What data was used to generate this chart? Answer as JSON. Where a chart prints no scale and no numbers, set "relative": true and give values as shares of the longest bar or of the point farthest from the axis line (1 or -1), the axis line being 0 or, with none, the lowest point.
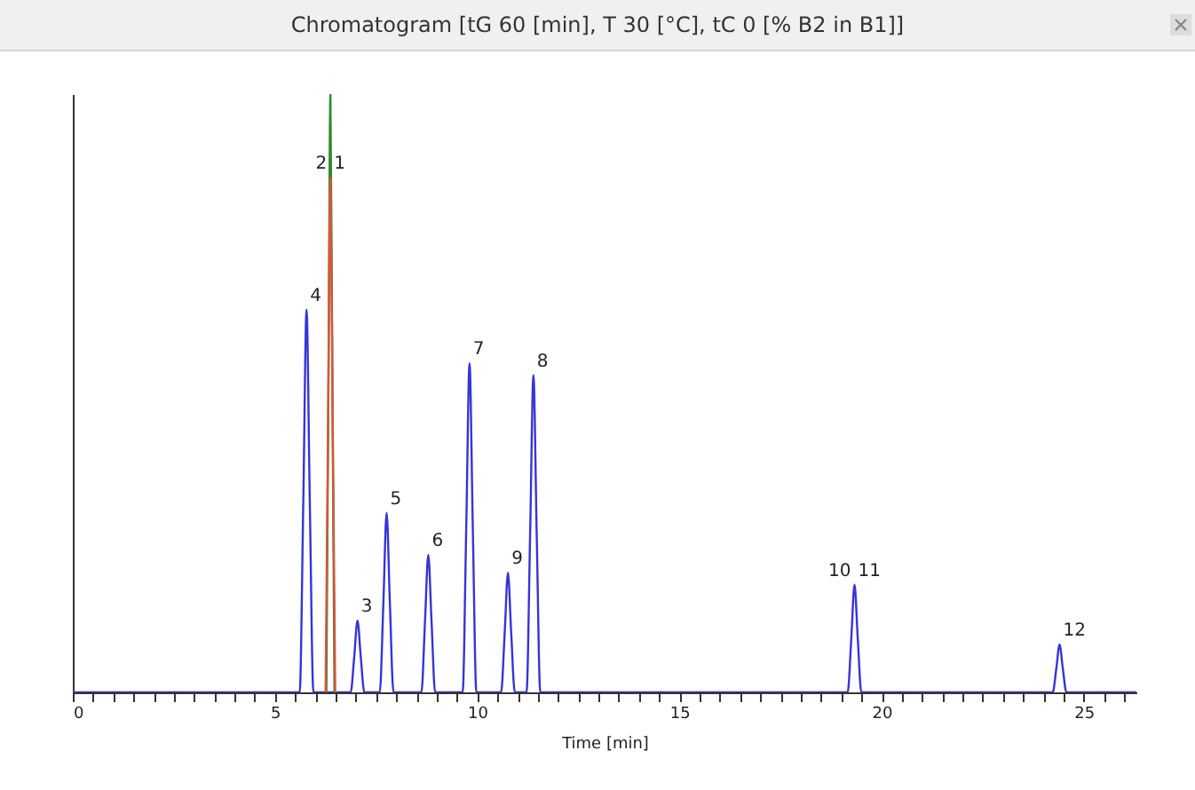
{
  "chart_data": {
    "type": "line",
    "title": "Chromatogram [tG 60 [min], T 30 [°C], tC 0 [% B2 in B1]]",
    "xlabel": "Time [min]",
    "relative": true,
    "grid": false,
    "legend": false,
    "marker": "none",
    "line_style": "solid",
    "xlim": [
      0,
      26.3
    ],
    "xticks": [
      0,
      {
        "value": 0.5,
        "label": null
      },
      {
        "value": 1,
        "label": null
      },
      {
        "value": 1.5,
        "label": null
      },
      {
        "value": 2,
        "label": null
      },
      {
        "value": 2.5,
        "label": null
      },
      {
        "value": 3,
        "label": null
      },
      {
        "value": 3.5,
        "label": null
      },
      {
        "value": 4,
        "label": null
      },
      {
        "value": 4.5,
        "label": null
      },
      5,
      {
        "value": 5.5,
        "label": null
      },
      {
        "value": 6,
        "label": null
      },
      {
        "value": 6.5,
        "label": null
      },
      {
        "value": 7,
        "label": null
      },
      {
        "value": 7.5,
        "label": null
      },
      {
        "value": 8,
        "label": null
      },
      {
        "value": 8.5,
        "label": null
      },
      {
        "value": 9,
        "label": null
      },
      {
        "value": 9.5,
        "label": null
      },
      10,
      {
        "value": 10.5,
        "label": null
      },
      {
        "value": 11,
        "label": null
      },
      {
        "value": 11.5,
        "label": null
      },
      {
        "value": 12,
        "label": null
      },
      {
        "value": 12.5,
        "label": null
      },
      {
        "value": 13,
        "label": null
      },
      {
        "value": 13.5,
        "label": null
      },
      {
        "value": 14,
        "label": null
      },
      {
        "value": 14.5,
        "label": null
      },
      15,
      {
        "value": 15.5,
        "label": null
      },
      {
        "value": 16,
        "label": null
      },
      {
        "value": 16.5,
        "label": null
      },
      {
        "value": 17,
        "label": null
      },
      {
        "value": 17.5,
        "label": null
      },
      {
        "value": 18,
        "label": null
      },
      {
        "value": 18.5,
        "label": null
      },
      {
        "value": 19,
        "label": null
      },
      {
        "value": 19.5,
        "label": null
      },
      20,
      {
        "value": 20.5,
        "label": null
      },
      {
        "value": 21,
        "label": null
      },
      {
        "value": 21.5,
        "label": null
      },
      {
        "value": 22,
        "label": null
      },
      {
        "value": 22.5,
        "label": null
      },
      {
        "value": 23,
        "label": null
      },
      {
        "value": 23.5,
        "label": null
      },
      {
        "value": 24,
        "label": null
      },
      {
        "value": 24.5,
        "label": null
      },
      25,
      {
        "value": 25.5,
        "label": null
      },
      {
        "value": 26,
        "label": null
      }
    ],
    "series": [
      {
        "color": "#3535d8",
        "x": [
          0,
          5.61,
          5.7,
          5.78,
          5.86,
          5.95,
          6.87,
          6.96,
          7.04,
          7.12,
          7.21,
          7.59,
          7.68,
          7.76,
          7.84,
          7.93,
          8.62,
          8.71,
          8.79,
          8.87,
          8.96,
          9.64,
          9.73,
          9.81,
          9.89,
          9.98,
          10.59,
          10.68,
          10.76,
          10.84,
          10.93,
          11.22,
          11.31,
          11.39,
          11.47,
          11.56,
          19.16,
          19.25,
          19.33,
          19.41,
          19.5,
          24.23,
          24.32,
          24.4,
          24.48,
          24.57,
          26.3
        ],
        "values": [
          0,
          0,
          0.32,
          0.64,
          0.32,
          0,
          0,
          0.06,
          0.12,
          0.06,
          0,
          0,
          0.15,
          0.3,
          0.15,
          0,
          0,
          0.12,
          0.23,
          0.12,
          0,
          0,
          0.28,
          0.55,
          0.28,
          0,
          0,
          0.1,
          0.2,
          0.1,
          0,
          0,
          0.27,
          0.53,
          0.27,
          0,
          0,
          0.09,
          0.18,
          0.09,
          0,
          0,
          0.04,
          0.08,
          0.04,
          0,
          0
        ]
      },
      {
        "color": "#2e8b2e",
        "x": [
          6.27,
          6.32,
          6.37,
          6.42,
          6.47
        ],
        "values": [
          0,
          0.5,
          1,
          0.5,
          0
        ]
      },
      {
        "color": "#d9563a",
        "x": [
          6.25,
          6.31,
          6.37,
          6.43,
          6.49
        ],
        "values": [
          0,
          0.43,
          0.86,
          0.43,
          0
        ]
      }
    ],
    "annotations": [
      {
        "text": "4",
        "x": 5.78,
        "y": 0.64
      },
      {
        "text": "2",
        "x": 6.37,
        "y": 0.86
      },
      {
        "text": "1",
        "x": 6.37,
        "y": 0.86
      },
      {
        "text": "3",
        "x": 7.04,
        "y": 0.12
      },
      {
        "text": "5",
        "x": 7.76,
        "y": 0.3
      },
      {
        "text": "6",
        "x": 8.79,
        "y": 0.23
      },
      {
        "text": "7",
        "x": 9.81,
        "y": 0.55
      },
      {
        "text": "9",
        "x": 10.76,
        "y": 0.2
      },
      {
        "text": "8",
        "x": 11.39,
        "y": 0.53
      },
      {
        "text": "10",
        "x": 19.33,
        "y": 0.18
      },
      {
        "text": "11",
        "x": 19.33,
        "y": 0.18
      },
      {
        "text": "12",
        "x": 24.4,
        "y": 0.08
      }
    ]
  }
}
